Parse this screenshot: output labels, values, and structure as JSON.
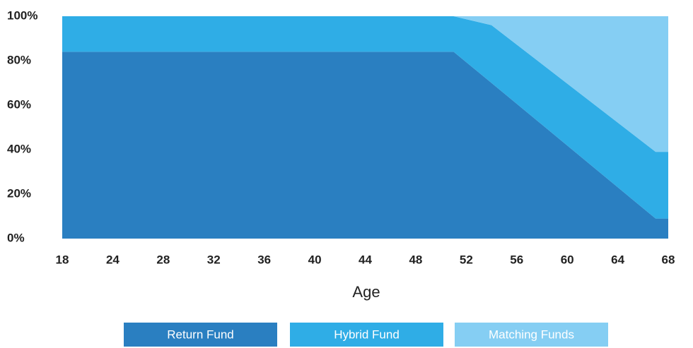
{
  "chart_data": {
    "type": "stacked-area",
    "x_label": "Age",
    "x": [
      18,
      51,
      54,
      67,
      68
    ],
    "series": [
      {
        "name": "Return Fund",
        "color": "#2a7fc1",
        "values": [
          84,
          84,
          70,
          9,
          9
        ]
      },
      {
        "name": "Hybrid Fund",
        "color": "#2fade6",
        "values": [
          16,
          16,
          26,
          30,
          30
        ]
      },
      {
        "name": "Matching Funds",
        "color": "#85cef3",
        "values": [
          0,
          0,
          4,
          61,
          61
        ]
      }
    ],
    "xlim": [
      18,
      68
    ],
    "xticks": [
      18,
      24,
      28,
      32,
      36,
      40,
      44,
      48,
      52,
      56,
      60,
      64,
      68
    ],
    "ylim": [
      0,
      100
    ],
    "yticks": [
      {
        "value": 0,
        "label": "0%"
      },
      {
        "value": 20,
        "label": "20%"
      },
      {
        "value": 40,
        "label": "40%"
      },
      {
        "value": 60,
        "label": "60%"
      },
      {
        "value": 80,
        "label": "80%"
      },
      {
        "value": 100,
        "label": "100%"
      }
    ]
  }
}
